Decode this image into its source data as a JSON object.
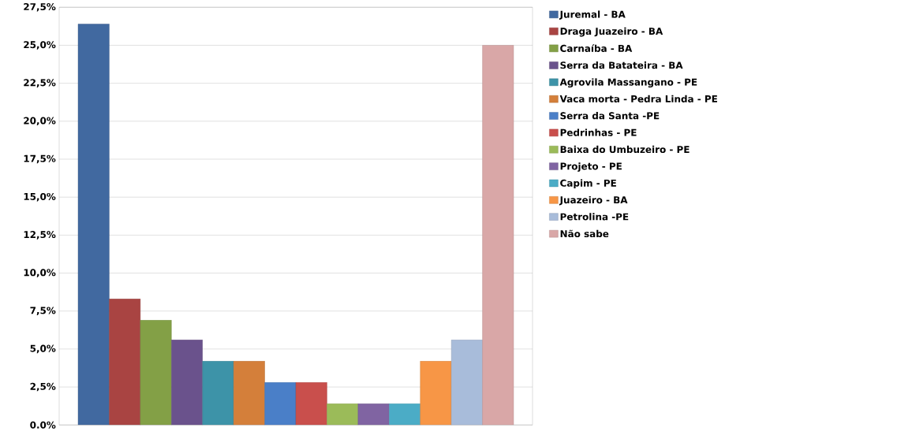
{
  "chart_data": {
    "type": "bar",
    "categories": [
      null
    ],
    "series": [
      {
        "name": "Juremal - BA",
        "color": "#4169a0",
        "values": [
          26.4
        ]
      },
      {
        "name": "Draga Juazeiro - BA",
        "color": "#a94442",
        "values": [
          8.3
        ]
      },
      {
        "name": "Carnaíba - BA",
        "color": "#83a046",
        "values": [
          6.9
        ]
      },
      {
        "name": "Serra da Batateira - BA",
        "color": "#6a528c",
        "values": [
          5.6
        ]
      },
      {
        "name": "Agrovila Massangano - PE",
        "color": "#3d93a8",
        "values": [
          4.2
        ]
      },
      {
        "name": "Vaca morta - Pedra Linda - PE",
        "color": "#d47f3a",
        "values": [
          4.2
        ]
      },
      {
        "name": "Serra da Santa -PE",
        "color": "#4a7fc8",
        "values": [
          2.8
        ]
      },
      {
        "name": "Pedrinhas - PE",
        "color": "#c94f4c",
        "values": [
          2.8
        ]
      },
      {
        "name": "Baixa do Umbuzeiro - PE",
        "color": "#9bbb59",
        "values": [
          1.4
        ]
      },
      {
        "name": "Projeto - PE",
        "color": "#8064a2",
        "values": [
          1.4
        ]
      },
      {
        "name": "Capim - PE",
        "color": "#4bacc6",
        "values": [
          1.4
        ]
      },
      {
        "name": "Juazeiro - BA",
        "color": "#f79646",
        "values": [
          4.2
        ]
      },
      {
        "name": "Petrolina -PE",
        "color": "#a8bcda",
        "values": [
          5.6
        ]
      },
      {
        "name": "Não sabe",
        "color": "#d9a7a7",
        "values": [
          25.0
        ]
      }
    ],
    "ylim": [
      0,
      27.5
    ],
    "yticks": [
      {
        "value": 0,
        "label": "0.0%"
      },
      {
        "value": 2.5,
        "label": "2,5%"
      },
      {
        "value": 5,
        "label": "5,0%"
      },
      {
        "value": 7.5,
        "label": "7,5%"
      },
      {
        "value": 10,
        "label": "10,0%"
      },
      {
        "value": 12.5,
        "label": "12,5%"
      },
      {
        "value": 15,
        "label": "15,0%"
      },
      {
        "value": 17.5,
        "label": "17,5%"
      },
      {
        "value": 20,
        "label": "20,0%"
      },
      {
        "value": 22.5,
        "label": "22,5%"
      },
      {
        "value": 25,
        "label": "25,0%"
      },
      {
        "value": 27.5,
        "label": "27,5%"
      }
    ],
    "grid": "y",
    "legend": "right"
  }
}
